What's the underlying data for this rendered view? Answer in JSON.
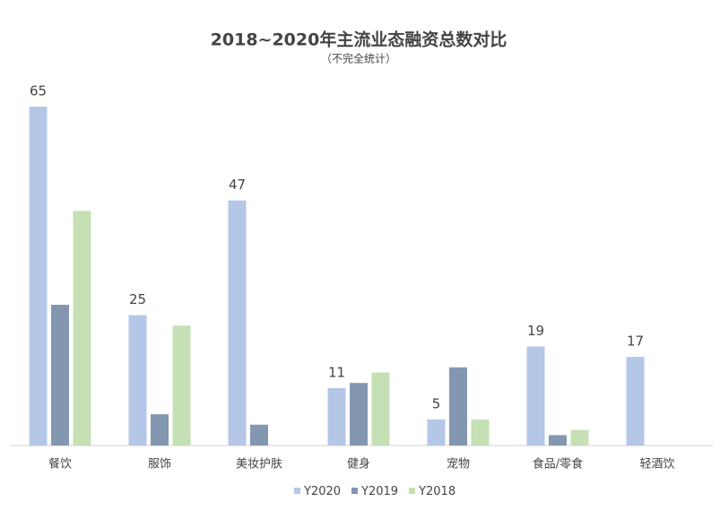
{
  "chart_data": {
    "type": "bar",
    "title": "2018~2020年主流业态融资总数对比",
    "subtitle": "（不完全统计）",
    "categories": [
      "餐饮",
      "服饰",
      "美妆护肤",
      "健身",
      "宠物",
      "食品/零食",
      "轻酒饮"
    ],
    "series": [
      {
        "name": "Y2020",
        "color": "#b4c7e7",
        "values": [
          65,
          25,
          47,
          11,
          5,
          19,
          17
        ],
        "labels": true
      },
      {
        "name": "Y2019",
        "color": "#8497b0",
        "values": [
          27,
          6,
          4,
          12,
          15,
          2,
          0
        ]
      },
      {
        "name": "Y2018",
        "color": "#c5e0b4",
        "values": [
          45,
          23,
          0,
          14,
          5,
          3,
          0
        ]
      }
    ]
  }
}
